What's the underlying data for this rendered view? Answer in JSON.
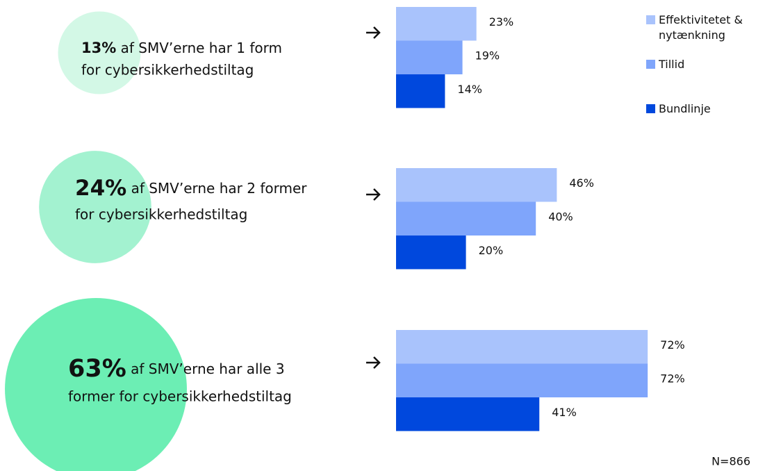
{
  "chart_data": {
    "type": "bar",
    "orientation": "horizontal",
    "xlim": [
      0,
      100
    ],
    "groups": [
      {
        "share": 13,
        "share_label": "13%",
        "color": "#d3f8e6",
        "lines": [
          "af SMV’erne har 1 form",
          "for cybersikkerhedstiltag"
        ]
      },
      {
        "share": 24,
        "share_label": "24%",
        "color": "#a3f2d0",
        "lines": [
          "af SMV’erne har 2 former",
          "for cybersikkerhedstiltag"
        ]
      },
      {
        "share": 63,
        "share_label": "63%",
        "color": "#6ceeb4",
        "lines": [
          "af SMV’erne har alle 3",
          "former for cybersikkerhedstiltag"
        ]
      }
    ],
    "series": [
      {
        "name": "Effektivitetet & nytænkning",
        "color": "#a9c3fc",
        "values": [
          23,
          46,
          72
        ],
        "value_labels": [
          "23%",
          "46%",
          "72%"
        ]
      },
      {
        "name": "Tillid",
        "color": "#7fa5fb",
        "values": [
          19,
          40,
          72
        ],
        "value_labels": [
          "19%",
          "40%",
          "72%"
        ]
      },
      {
        "name": "Bundlinje",
        "color": "#0048dd",
        "values": [
          14,
          20,
          41
        ],
        "value_labels": [
          "14%",
          "20%",
          "41%"
        ]
      }
    ],
    "note": "N=866"
  }
}
